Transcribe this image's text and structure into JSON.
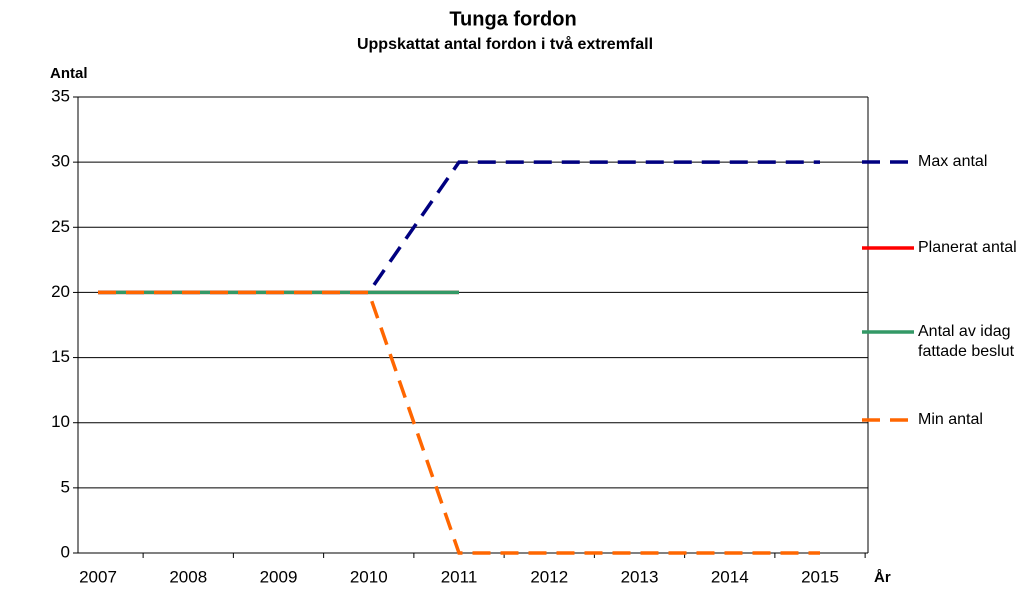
{
  "chart_data": {
    "type": "line",
    "title": "Tunga fordon",
    "subtitle": "Uppskattat antal fordon i två extremfall",
    "y_label": "Antal",
    "x_label": "År",
    "categories": [
      "2007",
      "2008",
      "2009",
      "2010",
      "2011",
      "2012",
      "2013",
      "2014",
      "2015"
    ],
    "series": [
      {
        "name": "Max antal",
        "color": "#000080",
        "dashed": true,
        "values": [
          20,
          20,
          20,
          20,
          30,
          30,
          30,
          30,
          30
        ]
      },
      {
        "name": "Planerat antal",
        "color": "#ff0000",
        "dashed": false,
        "values": [
          20,
          20,
          20,
          20,
          20,
          null,
          null,
          null,
          null
        ]
      },
      {
        "name": "Antal av idag fattade beslut",
        "color": "#339966",
        "dashed": false,
        "values": [
          20,
          20,
          20,
          20,
          20,
          null,
          null,
          null,
          null
        ]
      },
      {
        "name": "Min antal",
        "color": "#ff6600",
        "dashed": true,
        "values": [
          20,
          20,
          20,
          20,
          0,
          0,
          0,
          0,
          0
        ]
      }
    ],
    "ylim": [
      0,
      35
    ],
    "yticks": [
      0,
      5,
      10,
      15,
      20,
      25,
      30,
      35
    ],
    "grid": true,
    "legend": "right"
  }
}
